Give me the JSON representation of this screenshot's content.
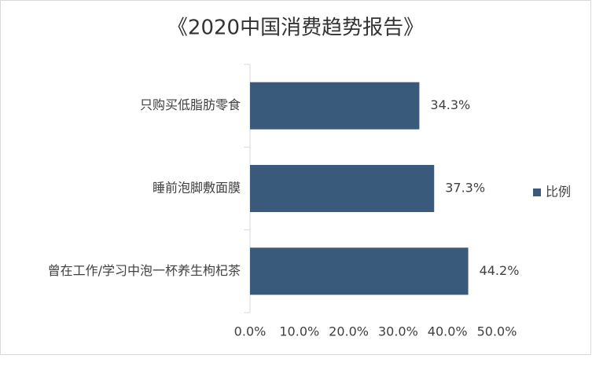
{
  "chart_data": {
    "type": "bar",
    "orientation": "horizontal",
    "title": "《2020中国消费趋势报告》",
    "categories": [
      "只购买低脂肪零食",
      "睡前泡脚敷面膜",
      "曾在工作/学习中泡一杯养生枸杞茶"
    ],
    "series": [
      {
        "name": "比例",
        "color": "#3a5a7c",
        "values": [
          34.3,
          37.3,
          44.2
        ],
        "value_labels": [
          "34.3%",
          "37.3%",
          "44.2%"
        ]
      }
    ],
    "xlim": [
      0,
      50
    ],
    "xticks": [
      {
        "value": 0,
        "label": "0.0%"
      },
      {
        "value": 10,
        "label": "10.0%"
      },
      {
        "value": 20,
        "label": "20.0%"
      },
      {
        "value": 30,
        "label": "30.0%"
      },
      {
        "value": 40,
        "label": "40.0%"
      },
      {
        "value": 50,
        "label": "50.0%"
      }
    ],
    "grid": false,
    "legend": "right"
  }
}
